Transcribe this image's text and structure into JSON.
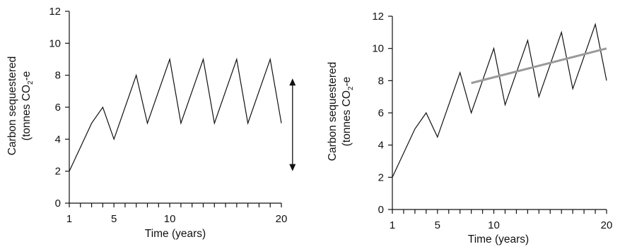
{
  "chart_data": [
    {
      "type": "line",
      "title": "",
      "xlabel": "Time (years)",
      "ylabel_line1": "Carbon sequestered",
      "ylabel_line2_pre": "(tonnes CO",
      "ylabel_line2_sub": "2",
      "ylabel_line2_post": "-e",
      "xlim": [
        1,
        20
      ],
      "ylim": [
        0,
        12
      ],
      "xticks": [
        1,
        5,
        10,
        20
      ],
      "xticks_minor": [
        1,
        2,
        3,
        4,
        5,
        6,
        7,
        8,
        9,
        10,
        11,
        12,
        13,
        14,
        15,
        16,
        17,
        18,
        19,
        20
      ],
      "yticks": [
        0,
        2,
        4,
        6,
        8,
        10,
        12
      ],
      "grid": false,
      "series": [
        {
          "x": [
            1,
            3,
            4,
            5,
            7,
            8,
            10,
            11,
            13,
            14,
            16,
            17,
            19,
            20
          ],
          "y": [
            2,
            5,
            6,
            4,
            8,
            5,
            9,
            5,
            9,
            5,
            9,
            5,
            9,
            5
          ]
        }
      ],
      "annotations": [
        {
          "type": "double-arrow",
          "x": 21,
          "y_from": 2,
          "y_to": 7.8
        }
      ]
    },
    {
      "type": "line",
      "title": "",
      "xlabel": "Time (years)",
      "ylabel_line1": "Carbon sequestered",
      "ylabel_line2_pre": "(tonnes CO",
      "ylabel_line2_sub": "2",
      "ylabel_line2_post": "-e",
      "xlim": [
        1,
        20
      ],
      "ylim": [
        0,
        12
      ],
      "xticks": [
        1,
        5,
        10,
        20
      ],
      "xticks_minor": [
        1,
        2,
        3,
        4,
        5,
        6,
        7,
        8,
        9,
        10,
        11,
        12,
        13,
        14,
        15,
        16,
        17,
        18,
        19,
        20
      ],
      "yticks": [
        0,
        2,
        4,
        6,
        8,
        10,
        12
      ],
      "grid": false,
      "series": [
        {
          "x": [
            1,
            3,
            4,
            5,
            7,
            8,
            10,
            11,
            13,
            14,
            16,
            17,
            19,
            20
          ],
          "y": [
            2,
            5,
            6,
            4.5,
            8.5,
            6,
            10,
            6.5,
            10.5,
            7,
            11,
            7.5,
            11.5,
            8
          ]
        }
      ],
      "trend": {
        "x": [
          8,
          20
        ],
        "y": [
          7.85,
          10
        ],
        "color": "#9a9a9a"
      }
    }
  ]
}
